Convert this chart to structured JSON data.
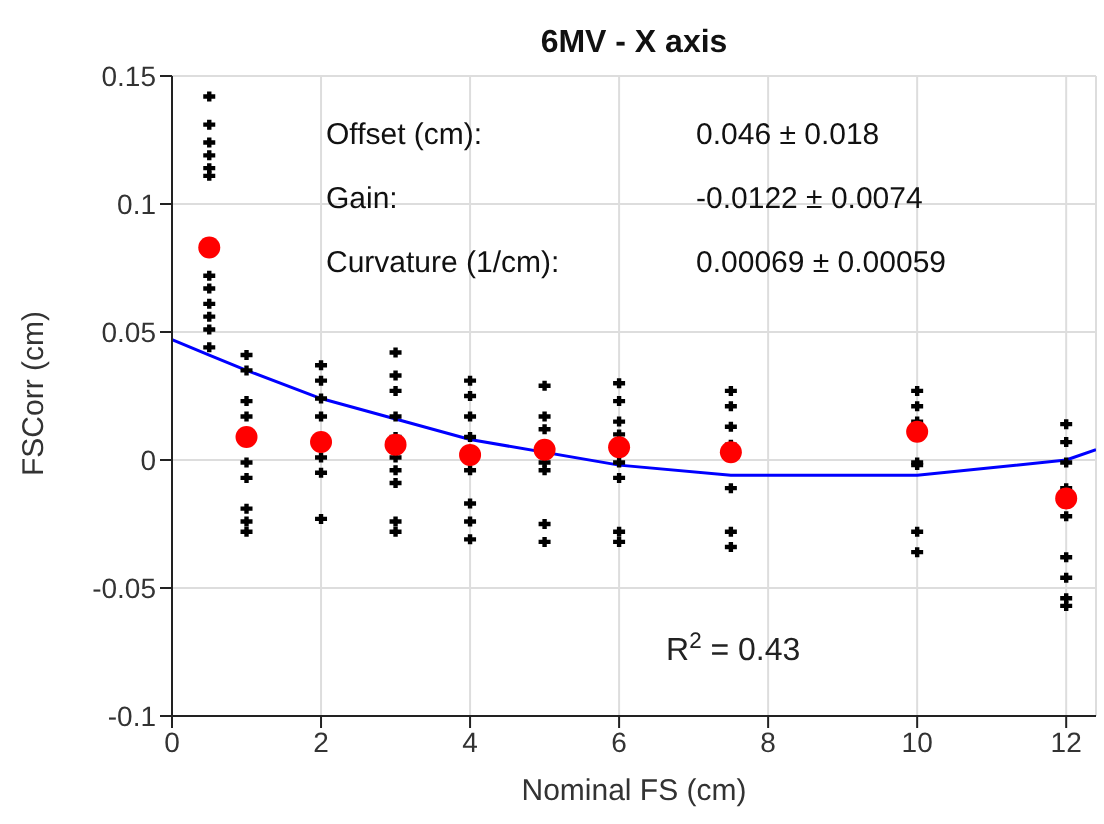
{
  "chart_data": {
    "type": "scatter",
    "title": "6MV - X axis",
    "xlabel": "Nominal FS (cm)",
    "ylabel": "FSCorr (cm)",
    "xlim": [
      0,
      12.4
    ],
    "xticks": [
      0,
      2,
      4,
      6,
      8,
      10,
      12
    ],
    "ylim": [
      -0.1,
      0.15
    ],
    "yticks": [
      -0.1,
      -0.05,
      0,
      0.05,
      0.1,
      0.15
    ],
    "grid": true,
    "legend": false,
    "annotations": [
      "Offset (cm):",
      "0.046 ± 0.018",
      "Gain:",
      "-0.0122 ± 0.0074",
      "Curvature (1/cm):",
      "0.00069 ± 0.00059",
      "R$^{2}$ = 0.43"
    ],
    "series": [
      {
        "color": "#000000",
        "marker": "cross",
        "x": [
          0.5,
          0.5,
          0.5,
          0.5,
          0.5,
          0.5,
          0.5,
          0.5,
          0.5,
          0.5,
          0.5,
          0.5,
          1,
          1,
          1,
          1,
          1,
          1,
          1,
          1,
          1,
          2,
          2,
          2,
          2,
          2,
          2,
          2,
          3,
          3,
          3,
          3,
          3,
          3,
          3,
          3,
          3,
          3,
          4,
          4,
          4,
          4,
          4,
          4,
          4,
          4,
          5,
          5,
          5,
          5,
          5,
          5,
          5,
          6,
          6,
          6,
          6,
          6,
          6,
          6,
          6,
          7.5,
          7.5,
          7.5,
          7.5,
          7.5,
          7.5,
          7.5,
          10,
          10,
          10,
          10,
          10,
          10,
          10,
          12,
          12,
          12,
          12,
          12,
          12,
          12,
          12,
          12
        ],
        "values": [
          0.142,
          0.131,
          0.124,
          0.119,
          0.114,
          0.111,
          0.072,
          0.067,
          0.061,
          0.056,
          0.051,
          0.044,
          0.041,
          0.035,
          0.023,
          0.017,
          -0.001,
          -0.007,
          -0.019,
          -0.024,
          -0.028,
          0.037,
          0.031,
          0.024,
          0.017,
          0.001,
          -0.005,
          -0.023,
          0.042,
          0.033,
          0.027,
          0.017,
          0.009,
          0.001,
          -0.004,
          -0.009,
          -0.024,
          -0.028,
          0.031,
          0.025,
          0.017,
          0.009,
          -0.004,
          -0.017,
          -0.024,
          -0.031,
          0.029,
          0.017,
          0.012,
          -0.001,
          -0.004,
          -0.025,
          -0.032,
          0.03,
          0.023,
          0.015,
          0.01,
          -0.001,
          -0.007,
          -0.028,
          -0.032,
          0.027,
          0.021,
          0.013,
          0.006,
          -0.011,
          -0.028,
          -0.034,
          0.027,
          0.021,
          0.015,
          -0.001,
          -0.002,
          -0.028,
          -0.036,
          0.014,
          0.007,
          -0.001,
          -0.011,
          -0.022,
          -0.038,
          -0.046,
          -0.054,
          -0.057
        ]
      },
      {
        "color": "#ff0000",
        "marker": "circle",
        "x": [
          0.5,
          1,
          2,
          3,
          4,
          5,
          6,
          7.5,
          10,
          12
        ],
        "values": [
          0.083,
          0.009,
          0.007,
          0.006,
          0.002,
          0.004,
          0.005,
          0.003,
          0.011,
          -0.015
        ]
      },
      {
        "type": "line",
        "color": "#0000ff",
        "marker": "none",
        "line_style": "solid",
        "x": [
          0,
          0.5,
          1,
          2,
          3,
          4,
          6,
          7.5,
          10,
          12,
          12.4
        ],
        "values": [
          0.047,
          0.041,
          0.035,
          0.024,
          0.016,
          0.008,
          -0.002,
          -0.006,
          -0.006,
          0.0,
          0.004
        ]
      }
    ]
  }
}
